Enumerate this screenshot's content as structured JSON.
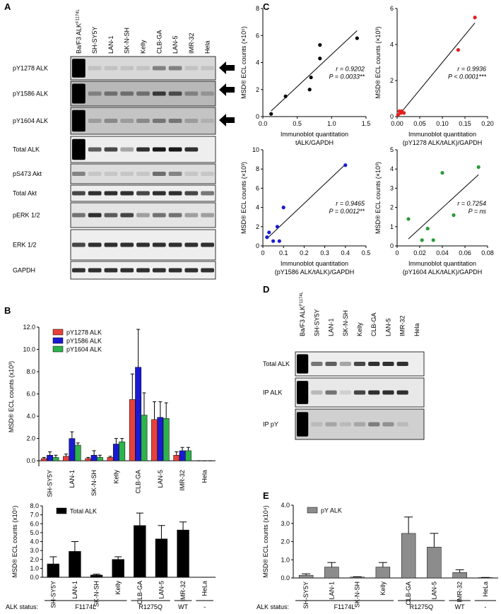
{
  "panels": [
    "A",
    "B",
    "C",
    "D",
    "E"
  ],
  "blot_a": {
    "lanes": [
      {
        "text": "Ba/F3 ALK",
        "sup": "F1174L"
      },
      "SH-SY5Y",
      "LAN-1",
      "SK-N-SH",
      "Kelly",
      "CLB-GA",
      "LAN-5",
      "IMR-32",
      "Hela"
    ],
    "rows": [
      "pY1278 ALK",
      "pY1586 ALK",
      "pY1604 ALK",
      "Total ALK",
      "pS473 Akt",
      "Total Akt",
      "pERK 1/2",
      "ERK 1/2",
      "GAPDH"
    ]
  },
  "blot_d": {
    "lanes": [
      {
        "text": "Ba/F3 ALK",
        "sup": "F1174L"
      },
      "SH-SY5Y",
      "LAN-1",
      "SK-N-SH",
      "Kelly",
      "CLB-GA",
      "LAN-5",
      "IMR-32",
      "Hela"
    ],
    "rows": [
      "Total ALK",
      "IP ALK",
      "IP pY"
    ]
  },
  "chart_data": [
    {
      "type": "bar",
      "ylabel": "MSD® ECL counts (x10³)",
      "categories": [
        "SH-SY5Y",
        "LAN-1",
        "SK-N-SH",
        "Kelly",
        "CLB-GA",
        "LAN-5",
        "IMR-32",
        "Hela"
      ],
      "series": [
        {
          "name": "pY1278 ALK",
          "color": "#e8413a",
          "values": [
            0.2,
            0.4,
            0.2,
            0.3,
            5.5,
            3.7,
            0.5,
            0.0
          ],
          "errors": [
            0.1,
            0.2,
            0.1,
            0.1,
            2.3,
            1.6,
            0.3,
            0.0
          ]
        },
        {
          "name": "pY1586 ALK",
          "color": "#1a1ad2",
          "values": [
            0.5,
            2.0,
            0.5,
            1.5,
            8.4,
            3.9,
            0.9,
            0.0
          ],
          "errors": [
            0.3,
            0.6,
            0.4,
            0.5,
            3.4,
            1.4,
            0.3,
            0.0
          ]
        },
        {
          "name": "pY1604 ALK",
          "color": "#2db34a",
          "values": [
            0.3,
            1.4,
            0.3,
            1.7,
            4.1,
            3.8,
            0.9,
            0.0
          ],
          "errors": [
            0.2,
            0.2,
            0.2,
            0.3,
            2.0,
            1.4,
            0.3,
            0.0
          ]
        }
      ],
      "ylim": [
        -0.5,
        12
      ],
      "yticks": [
        {
          "value": 0,
          "label": "0.0"
        },
        {
          "value": 2,
          "label": "2.0"
        },
        {
          "value": 4,
          "label": "4.0"
        },
        {
          "value": 6,
          "label": "6.0"
        },
        {
          "value": 8,
          "label": "8.0"
        },
        {
          "value": 10,
          "label": "10.0"
        },
        {
          "value": 12,
          "label": "12.0"
        }
      ],
      "legend": "upper left"
    },
    {
      "type": "bar",
      "ylabel": "MSD® ECL counts (x10⁵)",
      "categories": [
        "SH-SY5Y",
        "LAN-1",
        "SK-N-SH",
        "Kelly",
        "CLB-GA",
        "LAN-5",
        "IMR-32",
        "HeLa"
      ],
      "series": [
        {
          "name": "Total ALK",
          "color": "#000000",
          "values": [
            1.5,
            2.9,
            0.25,
            2.0,
            5.8,
            4.3,
            5.3,
            0.0
          ],
          "errors": [
            0.8,
            1.1,
            0.1,
            0.3,
            1.4,
            1.5,
            0.9,
            0.0
          ]
        }
      ],
      "ylim": [
        0,
        8
      ],
      "yticks": [
        {
          "value": 0,
          "label": "0.0"
        },
        {
          "value": 1,
          "label": "1.0"
        },
        {
          "value": 2,
          "label": "2.0"
        },
        {
          "value": 3,
          "label": "3.0"
        },
        {
          "value": 4,
          "label": "4.0"
        },
        {
          "value": 5,
          "label": "5.0"
        },
        {
          "value": 6,
          "label": "6.0"
        },
        {
          "value": 7,
          "label": "7.0"
        },
        {
          "value": 8,
          "label": "8.0"
        }
      ],
      "legend": "upper left",
      "status_label": "ALK status:",
      "status_groups": [
        "F1174L",
        "R1275Q",
        "WT",
        "-"
      ]
    },
    {
      "type": "scatter",
      "ylabel": "MSD® ECL counts (×10⁵)",
      "xlabel": [
        "Immunoblot quantitation",
        "tALK/GAPDH"
      ],
      "color": "#000000",
      "x": [
        0.12,
        0.33,
        0.68,
        0.7,
        0.83,
        0.83,
        1.37
      ],
      "values": [
        0.2,
        1.5,
        2.0,
        2.9,
        4.3,
        5.3,
        5.8
      ],
      "xlim": [
        0,
        1.5
      ],
      "xticks": [
        {
          "value": 0,
          "label": "0.0"
        },
        0.5,
        {
          "value": 1,
          "label": "1.0"
        },
        1.5
      ],
      "ylim": [
        0,
        8
      ],
      "yticks": [
        0,
        2,
        4,
        6,
        8
      ],
      "annotations": [
        "r = 0.9202",
        "P = 0.0033**"
      ]
    },
    {
      "type": "scatter",
      "ylabel": "MSD® ECL counts (×10³)",
      "xlabel": [
        "Immunoblot quantitation",
        "(pY1278 ALK/tALK)/GAPDH"
      ],
      "color": "#e02020",
      "x": [
        0.002,
        0.005,
        0.008,
        0.01,
        0.015,
        0.135,
        0.172
      ],
      "values": [
        0.1,
        0.3,
        0.2,
        0.3,
        0.2,
        3.7,
        5.5
      ],
      "xlim": [
        0,
        0.2
      ],
      "xticks": [
        {
          "value": 0,
          "label": "0.00"
        },
        0.05,
        {
          "value": 0.1,
          "label": "0.10"
        },
        0.15,
        {
          "value": 0.2,
          "label": "0.20"
        }
      ],
      "ylim": [
        0,
        6
      ],
      "yticks": [
        0,
        2,
        4,
        6
      ],
      "annotations": [
        "r = 0.9936",
        "P < 0.0001***"
      ]
    },
    {
      "type": "scatter",
      "ylabel": "MSD® ECL counts (×10³)",
      "xlabel": [
        "Immunoblot quantitation",
        "(pY1586 ALK/tALK)/GAPDH"
      ],
      "color": "#1a1ad2",
      "x": [
        0.02,
        0.03,
        0.05,
        0.07,
        0.08,
        0.1,
        0.4
      ],
      "values": [
        0.9,
        1.4,
        0.5,
        2.0,
        0.5,
        4.0,
        8.4
      ],
      "xlim": [
        0,
        0.5
      ],
      "xticks": [
        0,
        0.1,
        0.2,
        0.3,
        0.4,
        0.5
      ],
      "ylim": [
        0,
        10
      ],
      "yticks": [
        0,
        2,
        4,
        6,
        8,
        10
      ],
      "annotations": [
        "r = 0.9465",
        "P = 0.0012**"
      ]
    },
    {
      "type": "scatter",
      "ylabel": "MSD® ECL counts (×10³)",
      "xlabel": [
        "Immunoblot quantitation",
        "(pY1604 ALK/tALK)/GAPDH"
      ],
      "color": "#2a9a3a",
      "x": [
        0.01,
        0.022,
        0.027,
        0.032,
        0.04,
        0.05,
        0.072
      ],
      "values": [
        1.4,
        0.3,
        0.9,
        0.3,
        3.8,
        1.6,
        4.1
      ],
      "xlim": [
        0,
        0.08
      ],
      "xticks": [
        0,
        0.02,
        0.04,
        0.06,
        0.08
      ],
      "ylim": [
        0,
        5
      ],
      "yticks": [
        0,
        1,
        2,
        3,
        4,
        5
      ],
      "annotations": [
        "r = 0.7254",
        "P = ns"
      ]
    },
    {
      "type": "bar",
      "ylabel": "MSD® ECL counts (x10⁴)",
      "categories": [
        "SH-SY5Y",
        "LAN-1",
        "SK-N-SH",
        "Kelly",
        "CLB-GA",
        "LAN-5",
        "IMR-32",
        "HeLa"
      ],
      "series": [
        {
          "name": "pY ALK",
          "color": "#8c8c8c",
          "values": [
            0.15,
            0.6,
            0.05,
            0.6,
            2.45,
            1.7,
            0.3,
            0.02
          ],
          "errors": [
            0.08,
            0.25,
            0.02,
            0.25,
            0.9,
            0.75,
            0.15,
            0.01
          ]
        }
      ],
      "ylim": [
        0,
        4
      ],
      "yticks": [
        {
          "value": 0,
          "label": "0.0"
        },
        {
          "value": 1,
          "label": "1.0"
        },
        {
          "value": 2,
          "label": "2.0"
        },
        {
          "value": 3,
          "label": "3.0"
        },
        {
          "value": 4,
          "label": "4.0"
        }
      ],
      "legend": "upper left",
      "status_label": "ALK status:",
      "status_groups": [
        "F1174L",
        "R1275Q",
        "WT",
        "-"
      ]
    }
  ]
}
